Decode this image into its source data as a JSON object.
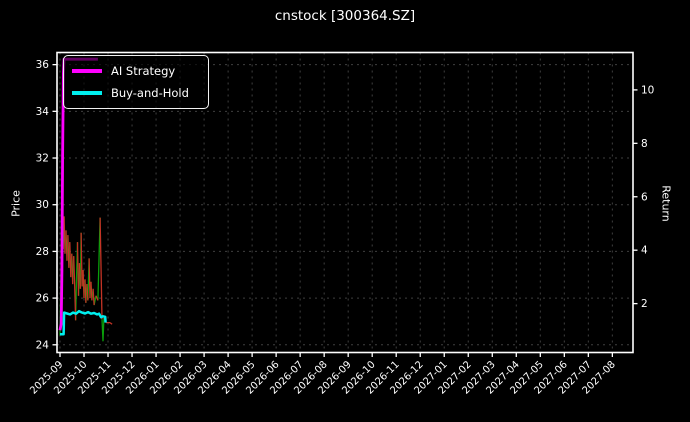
{
  "window": {
    "background": "#000000"
  },
  "chart_data": {
    "type": "line",
    "title": "cnstock [300364.SZ]",
    "ylabel_left": "Price",
    "ylabel_right": "Return",
    "x_tick_labels": [
      "2025-09",
      "2025-10",
      "2025-11",
      "2025-12",
      "2026-01",
      "2026-02",
      "2026-03",
      "2026-04",
      "2026-05",
      "2026-06",
      "2026-07",
      "2026-08",
      "2026-09",
      "2026-10",
      "2026-11",
      "2026-12",
      "2027-01",
      "2027-02",
      "2027-03",
      "2027-04",
      "2027-05",
      "2027-06",
      "2027-07",
      "2027-08"
    ],
    "yleft_ticks": [
      24,
      26,
      28,
      30,
      32,
      34,
      36
    ],
    "yright_ticks": [
      2,
      4,
      6,
      8,
      10
    ],
    "xlim_month_index": [
      -0.125,
      23.86
    ],
    "ylim_left": [
      23.67,
      36.52
    ],
    "ylim_right": [
      0.17,
      11.4
    ],
    "grid": true,
    "grid_color": "#3f3f3f",
    "axis_color": "#ffffff",
    "text_color": "#ffffff",
    "legend_position": "upper-left",
    "series": [
      {
        "name": "Price",
        "axis": "left",
        "style": "updown",
        "up_color": "#0a9e0a",
        "down_color": "#c43325",
        "line_width": 1.3,
        "points": [
          [
            0.0,
            24.4,
            "g"
          ],
          [
            0.04,
            27.0,
            "g"
          ],
          [
            0.08,
            30.6,
            "g"
          ],
          [
            0.13,
            28.1,
            "r"
          ],
          [
            0.17,
            29.5,
            "g"
          ],
          [
            0.21,
            27.9,
            "r"
          ],
          [
            0.25,
            28.9,
            "g"
          ],
          [
            0.29,
            27.6,
            "r"
          ],
          [
            0.33,
            28.7,
            "g"
          ],
          [
            0.37,
            27.3,
            "r"
          ],
          [
            0.41,
            28.4,
            "g"
          ],
          [
            0.45,
            26.9,
            "r"
          ],
          [
            0.49,
            27.9,
            "g"
          ],
          [
            0.53,
            26.6,
            "r"
          ],
          [
            0.57,
            27.8,
            "g"
          ],
          [
            0.61,
            26.5,
            "r"
          ],
          [
            0.65,
            25.05,
            "r"
          ],
          [
            0.69,
            27.0,
            "g"
          ],
          [
            0.73,
            28.4,
            "g"
          ],
          [
            0.77,
            26.1,
            "r"
          ],
          [
            0.81,
            27.5,
            "g"
          ],
          [
            0.85,
            26.4,
            "r"
          ],
          [
            0.88,
            28.8,
            "g"
          ],
          [
            0.92,
            26.5,
            "r"
          ],
          [
            0.96,
            27.2,
            "g"
          ],
          [
            1.0,
            26.0,
            "r"
          ],
          [
            1.04,
            26.8,
            "g"
          ],
          [
            1.08,
            25.8,
            "r"
          ],
          [
            1.12,
            26.6,
            "g"
          ],
          [
            1.16,
            25.9,
            "r"
          ],
          [
            1.21,
            27.7,
            "g"
          ],
          [
            1.25,
            26.0,
            "r"
          ],
          [
            1.29,
            26.7,
            "g"
          ],
          [
            1.33,
            25.9,
            "r"
          ],
          [
            1.38,
            26.4,
            "g"
          ],
          [
            1.42,
            25.7,
            "r"
          ],
          [
            1.5,
            26.1,
            "g"
          ],
          [
            1.58,
            25.9,
            "r"
          ],
          [
            1.67,
            29.45,
            "g"
          ],
          [
            1.75,
            25.1,
            "r"
          ],
          [
            1.79,
            24.15,
            "g"
          ],
          [
            1.83,
            25.15,
            "g"
          ],
          [
            1.92,
            24.95,
            "r"
          ],
          [
            2.08,
            24.95,
            "r"
          ],
          [
            2.17,
            24.88,
            "r"
          ]
        ]
      },
      {
        "name": "AI Strategy",
        "axis": "right",
        "color": "#ff00ff",
        "line_width": 2.8,
        "points": [
          [
            0.0,
            1.0
          ],
          [
            0.05,
            1.25
          ],
          [
            0.08,
            3.2
          ],
          [
            0.11,
            7.5
          ],
          [
            0.14,
            10.6
          ],
          [
            0.17,
            11.15
          ],
          [
            1.58,
            11.15
          ]
        ]
      },
      {
        "name": "Buy-and-Hold",
        "axis": "left",
        "color": "#00efef",
        "line_width": 2.5,
        "points": [
          [
            0.0,
            24.45
          ],
          [
            0.15,
            24.45
          ],
          [
            0.17,
            25.38
          ],
          [
            0.29,
            25.34
          ],
          [
            0.42,
            25.3
          ],
          [
            0.54,
            25.38
          ],
          [
            0.67,
            25.33
          ],
          [
            0.79,
            25.44
          ],
          [
            0.92,
            25.38
          ],
          [
            1.04,
            25.34
          ],
          [
            1.17,
            25.4
          ],
          [
            1.29,
            25.33
          ],
          [
            1.42,
            25.36
          ],
          [
            1.54,
            25.3
          ],
          [
            1.63,
            25.33
          ],
          [
            1.71,
            25.18
          ],
          [
            1.79,
            25.22
          ],
          [
            1.88,
            25.2
          ],
          [
            1.9,
            24.95
          ]
        ]
      }
    ]
  },
  "legend": {
    "entries": [
      {
        "label": "AI Strategy",
        "color": "#ff00ff"
      },
      {
        "label": "Buy-and-Hold",
        "color": "#00efef"
      }
    ]
  }
}
